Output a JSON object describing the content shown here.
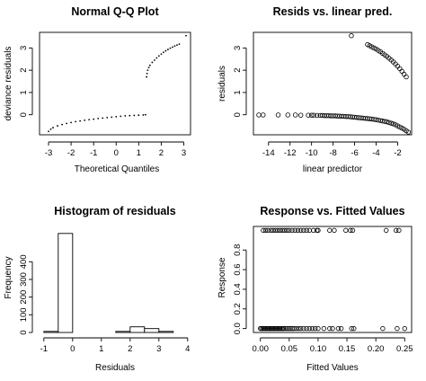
{
  "chart_data": [
    {
      "type": "scatter",
      "title": "Normal Q-Q Plot",
      "xlabel": "Theoretical Quantiles",
      "ylabel": "deviance residuals",
      "xlim": [
        -3.4,
        3.3
      ],
      "ylim": [
        -0.9,
        3.7
      ],
      "xticks": [
        -3,
        -2,
        -1,
        0,
        1,
        2,
        3
      ],
      "yticks": [
        0,
        1,
        2,
        3
      ],
      "series": [
        {
          "marker": "dot",
          "points": [
            [
              -3.0,
              -0.75
            ],
            [
              -2.9,
              -0.65
            ],
            [
              -2.8,
              -0.58
            ],
            [
              -2.6,
              -0.5
            ],
            [
              -2.4,
              -0.44
            ],
            [
              -2.2,
              -0.39
            ],
            [
              -2.0,
              -0.35
            ],
            [
              -1.8,
              -0.31
            ],
            [
              -1.6,
              -0.28
            ],
            [
              -1.4,
              -0.25
            ],
            [
              -1.2,
              -0.22
            ],
            [
              -1.0,
              -0.2
            ],
            [
              -0.8,
              -0.17
            ],
            [
              -0.6,
              -0.15
            ],
            [
              -0.4,
              -0.13
            ],
            [
              -0.2,
              -0.11
            ],
            [
              0.0,
              -0.09
            ],
            [
              0.2,
              -0.07
            ],
            [
              0.4,
              -0.05
            ],
            [
              0.6,
              -0.04
            ],
            [
              0.8,
              -0.03
            ],
            [
              1.0,
              -0.02
            ],
            [
              1.2,
              -0.01
            ],
            [
              1.3,
              0.0
            ],
            [
              1.35,
              1.7
            ],
            [
              1.37,
              1.85
            ],
            [
              1.4,
              2.0
            ],
            [
              1.45,
              2.12
            ],
            [
              1.5,
              2.22
            ],
            [
              1.6,
              2.35
            ],
            [
              1.7,
              2.45
            ],
            [
              1.8,
              2.55
            ],
            [
              1.9,
              2.64
            ],
            [
              2.0,
              2.72
            ],
            [
              2.1,
              2.8
            ],
            [
              2.2,
              2.87
            ],
            [
              2.3,
              2.93
            ],
            [
              2.4,
              2.99
            ],
            [
              2.5,
              3.04
            ],
            [
              2.6,
              3.09
            ],
            [
              2.7,
              3.13
            ],
            [
              2.8,
              3.17
            ],
            [
              3.1,
              3.55
            ]
          ]
        }
      ]
    },
    {
      "type": "scatter",
      "title": "Resids vs. linear pred.",
      "xlabel": "linear predictor",
      "ylabel": "residuals",
      "xlim": [
        -15.4,
        -0.7
      ],
      "ylim": [
        -0.9,
        3.7
      ],
      "xticks": [
        -14,
        -12,
        -10,
        -8,
        -6,
        -4,
        -2
      ],
      "yticks": [
        0,
        1,
        2,
        3
      ],
      "series": [
        {
          "marker": "circle",
          "points": [
            [
              -14.9,
              -0.01
            ],
            [
              -14.5,
              -0.01
            ],
            [
              -13.1,
              -0.01
            ],
            [
              -12.2,
              -0.01
            ],
            [
              -11.5,
              -0.01
            ],
            [
              -11.0,
              -0.02
            ],
            [
              -10.3,
              -0.02
            ],
            [
              -10.0,
              -0.02
            ],
            [
              -9.8,
              -0.02
            ],
            [
              -9.5,
              -0.03
            ],
            [
              -9.2,
              -0.03
            ],
            [
              -9.0,
              -0.03
            ],
            [
              -8.8,
              -0.04
            ],
            [
              -8.6,
              -0.04
            ],
            [
              -8.4,
              -0.04
            ],
            [
              -8.2,
              -0.05
            ],
            [
              -8.0,
              -0.05
            ],
            [
              -7.8,
              -0.05
            ],
            [
              -7.6,
              -0.06
            ],
            [
              -7.4,
              -0.06
            ],
            [
              -7.2,
              -0.07
            ],
            [
              -7.0,
              -0.07
            ],
            [
              -6.8,
              -0.08
            ],
            [
              -6.6,
              -0.08
            ],
            [
              -6.4,
              -0.09
            ],
            [
              -6.2,
              -0.1
            ],
            [
              -6.0,
              -0.11
            ],
            [
              -5.8,
              -0.12
            ],
            [
              -5.6,
              -0.13
            ],
            [
              -5.4,
              -0.14
            ],
            [
              -5.2,
              -0.15
            ],
            [
              -5.0,
              -0.16
            ],
            [
              -4.8,
              -0.17
            ],
            [
              -4.6,
              -0.18
            ],
            [
              -4.4,
              -0.19
            ],
            [
              -4.2,
              -0.21
            ],
            [
              -4.0,
              -0.22
            ],
            [
              -3.8,
              -0.24
            ],
            [
              -3.6,
              -0.26
            ],
            [
              -3.4,
              -0.28
            ],
            [
              -3.2,
              -0.3
            ],
            [
              -3.0,
              -0.32
            ],
            [
              -2.8,
              -0.35
            ],
            [
              -2.6,
              -0.38
            ],
            [
              -2.4,
              -0.41
            ],
            [
              -2.2,
              -0.45
            ],
            [
              -2.0,
              -0.5
            ],
            [
              -1.8,
              -0.55
            ],
            [
              -1.6,
              -0.6
            ],
            [
              -1.4,
              -0.65
            ],
            [
              -1.2,
              -0.72
            ],
            [
              -1.0,
              -0.78
            ],
            [
              -6.3,
              3.55
            ],
            [
              -4.8,
              3.15
            ],
            [
              -4.6,
              3.1
            ],
            [
              -4.4,
              3.05
            ],
            [
              -4.2,
              3.0
            ],
            [
              -4.0,
              2.95
            ],
            [
              -3.8,
              2.89
            ],
            [
              -3.6,
              2.83
            ],
            [
              -3.4,
              2.76
            ],
            [
              -3.2,
              2.69
            ],
            [
              -3.0,
              2.62
            ],
            [
              -2.8,
              2.54
            ],
            [
              -2.6,
              2.46
            ],
            [
              -2.4,
              2.37
            ],
            [
              -2.2,
              2.28
            ],
            [
              -2.0,
              2.18
            ],
            [
              -1.8,
              2.07
            ],
            [
              -1.6,
              1.95
            ],
            [
              -1.4,
              1.82
            ],
            [
              -1.2,
              1.7
            ]
          ]
        }
      ]
    },
    {
      "type": "bar",
      "title": "Histogram of residuals",
      "xlabel": "Residuals",
      "ylabel": "Frequency",
      "xlim": [
        -1.15,
        4.1
      ],
      "ylim": [
        0,
        620
      ],
      "xticks": [
        -1,
        0,
        1,
        2,
        3,
        4
      ],
      "yticks": [
        0,
        100,
        200,
        300,
        400
      ],
      "bins": [
        {
          "from": -1.0,
          "to": -0.5,
          "count": 6
        },
        {
          "from": -0.5,
          "to": 0.0,
          "count": 560
        },
        {
          "from": 0.0,
          "to": 0.5,
          "count": 0
        },
        {
          "from": 0.5,
          "to": 1.0,
          "count": 0
        },
        {
          "from": 1.0,
          "to": 1.5,
          "count": 0
        },
        {
          "from": 1.5,
          "to": 2.0,
          "count": 6
        },
        {
          "from": 2.0,
          "to": 2.5,
          "count": 32
        },
        {
          "from": 2.5,
          "to": 3.0,
          "count": 22
        },
        {
          "from": 3.0,
          "to": 3.5,
          "count": 6
        },
        {
          "from": 3.5,
          "to": 4.0,
          "count": 0
        }
      ]
    },
    {
      "type": "scatter",
      "title": "Response vs. Fitted Values",
      "xlabel": "Fitted Values",
      "ylabel": "Response",
      "xlim": [
        -0.012,
        0.262
      ],
      "ylim": [
        -0.04,
        1.04
      ],
      "xticks": [
        "0.00",
        "0.05",
        "0.10",
        "0.15",
        "0.20",
        "0.25"
      ],
      "yticks": [
        "0.0",
        "0.2",
        "0.4",
        "0.6",
        "0.8"
      ],
      "series": [
        {
          "marker": "circle",
          "points": [
            [
              0.0,
              0
            ],
            [
              0.002,
              0
            ],
            [
              0.004,
              0
            ],
            [
              0.006,
              0
            ],
            [
              0.008,
              0
            ],
            [
              0.01,
              0
            ],
            [
              0.012,
              0
            ],
            [
              0.014,
              0
            ],
            [
              0.016,
              0
            ],
            [
              0.018,
              0
            ],
            [
              0.02,
              0
            ],
            [
              0.022,
              0
            ],
            [
              0.024,
              0
            ],
            [
              0.026,
              0
            ],
            [
              0.028,
              0
            ],
            [
              0.03,
              0
            ],
            [
              0.032,
              0
            ],
            [
              0.034,
              0
            ],
            [
              0.036,
              0
            ],
            [
              0.038,
              0
            ],
            [
              0.04,
              0
            ],
            [
              0.043,
              0
            ],
            [
              0.046,
              0
            ],
            [
              0.049,
              0
            ],
            [
              0.052,
              0
            ],
            [
              0.055,
              0
            ],
            [
              0.058,
              0
            ],
            [
              0.062,
              0
            ],
            [
              0.066,
              0
            ],
            [
              0.07,
              0
            ],
            [
              0.075,
              0
            ],
            [
              0.08,
              0
            ],
            [
              0.085,
              0
            ],
            [
              0.09,
              0
            ],
            [
              0.095,
              0
            ],
            [
              0.1,
              0
            ],
            [
              0.11,
              0
            ],
            [
              0.12,
              0
            ],
            [
              0.125,
              0
            ],
            [
              0.135,
              0
            ],
            [
              0.14,
              0
            ],
            [
              0.158,
              0
            ],
            [
              0.162,
              0
            ],
            [
              0.212,
              0
            ],
            [
              0.237,
              0
            ],
            [
              0.25,
              0
            ],
            [
              0.005,
              1
            ],
            [
              0.009,
              1
            ],
            [
              0.013,
              1
            ],
            [
              0.018,
              1
            ],
            [
              0.022,
              1
            ],
            [
              0.026,
              1
            ],
            [
              0.03,
              1
            ],
            [
              0.034,
              1
            ],
            [
              0.038,
              1
            ],
            [
              0.042,
              1
            ],
            [
              0.046,
              1
            ],
            [
              0.05,
              1
            ],
            [
              0.055,
              1
            ],
            [
              0.06,
              1
            ],
            [
              0.065,
              1
            ],
            [
              0.07,
              1
            ],
            [
              0.075,
              1
            ],
            [
              0.08,
              1
            ],
            [
              0.085,
              1
            ],
            [
              0.092,
              1
            ],
            [
              0.098,
              1
            ],
            [
              0.1,
              1
            ],
            [
              0.12,
              1
            ],
            [
              0.128,
              1
            ],
            [
              0.148,
              1
            ],
            [
              0.156,
              1
            ],
            [
              0.16,
              1
            ],
            [
              0.218,
              1
            ],
            [
              0.235,
              1
            ],
            [
              0.24,
              1
            ]
          ]
        }
      ]
    }
  ]
}
